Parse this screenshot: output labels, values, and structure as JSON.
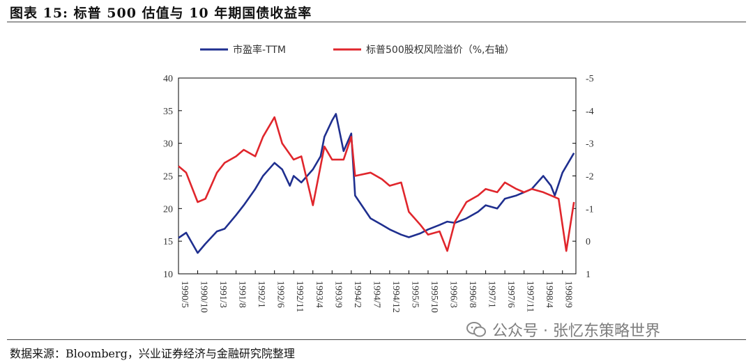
{
  "header": {
    "title": "图表 15:  标普 500 估值与 10 年期国债收益率"
  },
  "footer": {
    "source": "数据来源：Bloomberg，兴业证券经济与金融研究院整理",
    "watermark": "公众号 · 张忆东策略世界"
  },
  "colors": {
    "pe": "#1f2f8f",
    "erp": "#e0262c"
  },
  "chart_data": {
    "type": "line",
    "legend_position": "top",
    "grid": false,
    "x_ticks": [
      "1990/5",
      "1990/10",
      "1991/3",
      "1991/8",
      "1992/1",
      "1992/6",
      "1992/11",
      "1993/4",
      "1993/9",
      "1994/2",
      "1994/7",
      "1994/12",
      "1995/5",
      "1995/10",
      "1996/3",
      "1996/8",
      "1997/1",
      "1997/6",
      "1997/11",
      "1998/4",
      "1998/9"
    ],
    "y_left": {
      "lim": [
        10,
        40
      ],
      "ticks": [
        "10",
        "15",
        "20",
        "25",
        "30",
        "35",
        "40"
      ]
    },
    "y_right": {
      "lim": [
        1,
        -5
      ],
      "ticks": [
        "1",
        "0",
        "-1",
        "-2",
        "-3",
        "-4",
        "-5"
      ],
      "inverted": true
    },
    "series": [
      {
        "name": "市盈率-TTM",
        "axis": "left",
        "x": [
          "1990/5",
          "1990/7",
          "1990/10",
          "1990/12",
          "1991/3",
          "1991/5",
          "1991/8",
          "1991/10",
          "1992/1",
          "1992/3",
          "1992/6",
          "1992/8",
          "1992/10",
          "1992/11",
          "1993/1",
          "1993/4",
          "1993/6",
          "1993/7",
          "1993/9",
          "1993/10",
          "1993/12",
          "1994/2",
          "1994/3",
          "1994/7",
          "1994/10",
          "1994/12",
          "1995/3",
          "1995/5",
          "1995/8",
          "1995/10",
          "1996/1",
          "1996/3",
          "1996/5",
          "1996/8",
          "1996/11",
          "1997/1",
          "1997/4",
          "1997/6",
          "1997/9",
          "1997/11",
          "1998/1",
          "1998/4",
          "1998/6",
          "1998/7",
          "1998/9",
          "1998/12"
        ],
        "values": [
          15.5,
          16.3,
          13.2,
          14.6,
          16.5,
          16.9,
          19.0,
          20.5,
          23.0,
          25.0,
          27.0,
          26.0,
          23.5,
          25.0,
          24.0,
          26.0,
          28.0,
          31.0,
          33.5,
          34.5,
          28.8,
          31.5,
          22.0,
          18.5,
          17.5,
          16.8,
          16.0,
          15.6,
          16.2,
          16.8,
          17.5,
          18.0,
          17.8,
          18.5,
          19.5,
          20.5,
          20.0,
          21.5,
          22.0,
          22.5,
          23.0,
          25.0,
          23.5,
          22.0,
          25.5,
          28.5
        ]
      },
      {
        "name": "标普500股权风险溢价（%,右轴）",
        "axis": "right",
        "x": [
          "1990/5",
          "1990/7",
          "1990/10",
          "1990/12",
          "1991/3",
          "1991/5",
          "1991/8",
          "1991/10",
          "1992/1",
          "1992/3",
          "1992/6",
          "1992/8",
          "1992/11",
          "1993/1",
          "1993/4",
          "1993/7",
          "1993/9",
          "1993/12",
          "1994/2",
          "1994/3",
          "1994/7",
          "1994/10",
          "1994/12",
          "1995/3",
          "1995/5",
          "1995/8",
          "1995/10",
          "1996/1",
          "1996/3",
          "1996/5",
          "1996/8",
          "1996/11",
          "1997/1",
          "1997/4",
          "1997/6",
          "1997/9",
          "1997/11",
          "1998/1",
          "1998/4",
          "1998/6",
          "1998/8",
          "1998/10",
          "1998/12"
        ],
        "values": [
          -2.3,
          -2.1,
          -1.2,
          -1.3,
          -2.1,
          -2.4,
          -2.6,
          -2.8,
          -2.6,
          -3.2,
          -3.8,
          -3.0,
          -2.5,
          -2.6,
          -1.1,
          -2.9,
          -2.5,
          -2.5,
          -3.2,
          -2.0,
          -2.1,
          -1.9,
          -1.7,
          -1.8,
          -0.9,
          -0.5,
          -0.2,
          -0.3,
          0.3,
          -0.6,
          -1.2,
          -1.4,
          -1.6,
          -1.5,
          -1.8,
          -1.6,
          -1.5,
          -1.6,
          -1.5,
          -1.4,
          -1.3,
          0.3,
          -1.2
        ]
      }
    ]
  }
}
